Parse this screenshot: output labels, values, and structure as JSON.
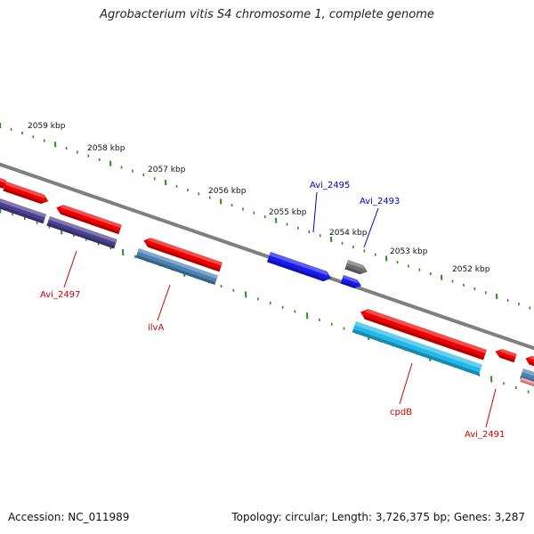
{
  "title": "Agrobacterium vitis S4 chromosome 1, complete genome",
  "accession": "Accession: NC_011989",
  "summary": "Topology: circular; Length: 3,726,375 bp; Genes: 3,287",
  "colors": {
    "backbone": "#7f7f7f",
    "ruler": "#2e8b1e",
    "forward_label": "#0000cc",
    "reverse_label": "#cc0000",
    "red": "#ee0000",
    "blue": "#1a1aee",
    "gray": "#6e6e6e",
    "navy": "#4a3f8e",
    "steel": "#4a82b4",
    "cyan": "#22b8e8",
    "pink": "#f09090"
  },
  "ruler_labels": [
    "2059 kbp",
    "2058 kbp",
    "2057 kbp",
    "2056 kbp",
    "2055 kbp",
    "2054 kbp",
    "2053 kbp",
    "2052 kbp"
  ],
  "gene_labels": [
    {
      "name": "Avi_2495",
      "strand": "forward"
    },
    {
      "name": "Avi_2493",
      "strand": "forward"
    },
    {
      "name": "Avi_2497",
      "strand": "reverse"
    },
    {
      "name": "ilvA",
      "strand": "reverse"
    },
    {
      "name": "cpdB",
      "strand": "reverse"
    },
    {
      "name": "Avi_2491",
      "strand": "reverse"
    }
  ]
}
